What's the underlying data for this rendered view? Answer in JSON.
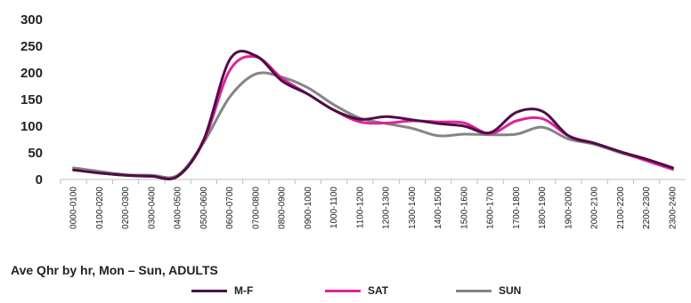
{
  "chart_data": {
    "type": "line",
    "title": "",
    "subtitle": "Ave Qhr by hr, Mon – Sun, ADULTS",
    "xlabel": "",
    "ylabel": "",
    "ylim": [
      0,
      300
    ],
    "y_ticks": [
      "0",
      "50",
      "100",
      "150",
      "200",
      "250",
      "300"
    ],
    "grid": false,
    "legend_position": "bottom",
    "categories": [
      "0000-0100",
      "0100-0200",
      "0200-0300",
      "0300-0400",
      "0400-0500",
      "0500-0600",
      "0600-0700",
      "0700-0800",
      "0800-0900",
      "0900-1000",
      "1000-1100",
      "1100-1200",
      "1200-1300",
      "1300-1400",
      "1400-1500",
      "1500-1600",
      "1600-1700",
      "1700-1800",
      "1800-1900",
      "1900-2000",
      "2000-2100",
      "2100-2200",
      "2200-2300",
      "2300-2400"
    ],
    "series": [
      {
        "name": "M-F",
        "color": "#4b0f45",
        "values": [
          18,
          12,
          8,
          6,
          6,
          75,
          225,
          232,
          185,
          160,
          130,
          113,
          118,
          112,
          105,
          100,
          88,
          126,
          128,
          82,
          68,
          52,
          38,
          22
        ]
      },
      {
        "name": "SAT",
        "color": "#e0229c",
        "values": [
          18,
          12,
          8,
          6,
          6,
          72,
          205,
          230,
          190,
          160,
          130,
          108,
          106,
          110,
          108,
          106,
          86,
          110,
          114,
          82,
          68,
          52,
          35,
          19
        ]
      },
      {
        "name": "SUN",
        "color": "#858585",
        "values": [
          22,
          15,
          9,
          8,
          8,
          70,
          155,
          198,
          192,
          172,
          140,
          115,
          105,
          96,
          82,
          85,
          84,
          85,
          98,
          76,
          66,
          50,
          36,
          20
        ]
      }
    ]
  }
}
